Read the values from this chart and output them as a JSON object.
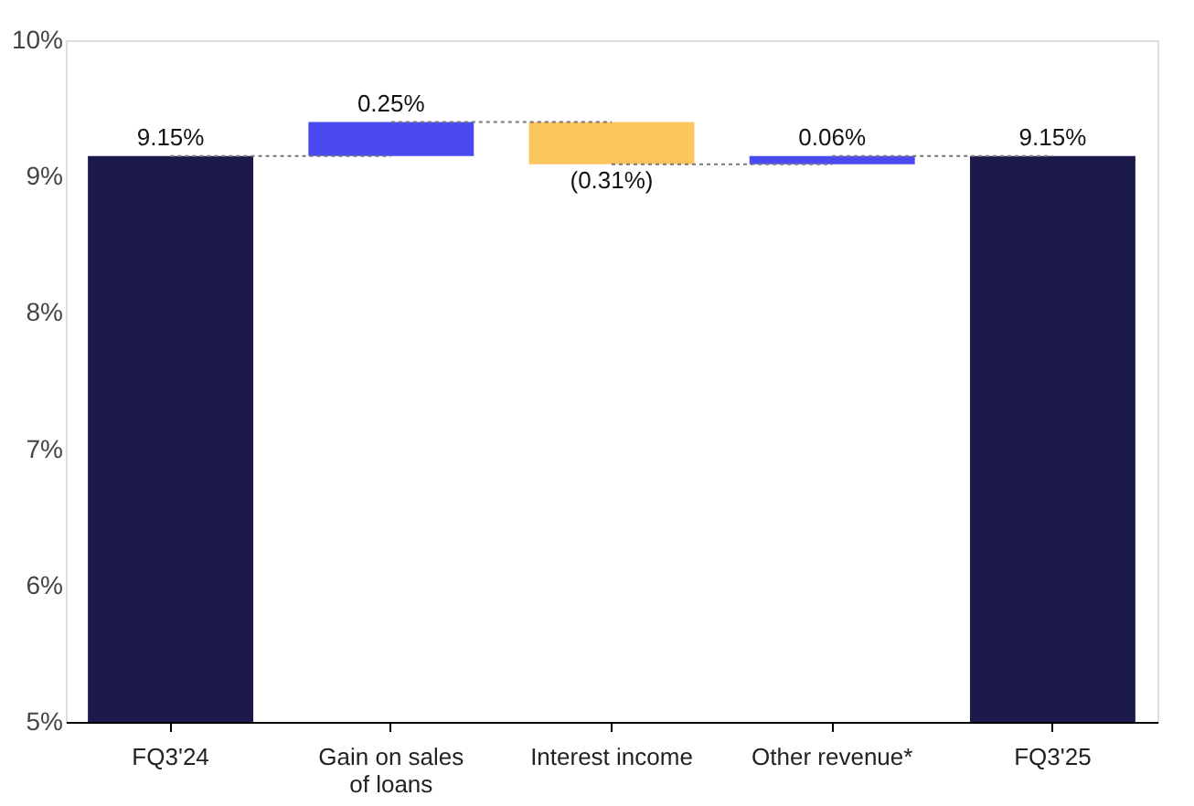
{
  "chart_data": {
    "type": "bar",
    "categories": [
      "FQ3'24",
      "Gain on sales of loans",
      "Interest income",
      "Other revenue*",
      "FQ3'25"
    ],
    "base": [
      5,
      9.15,
      9.4,
      9.09,
      5
    ],
    "values": [
      4.15,
      0.25,
      -0.31,
      0.06,
      4.15
    ],
    "colors": [
      "#1c1a4a",
      "#4a4af0",
      "#fcc65e",
      "#4a4af0",
      "#1c1a4a"
    ],
    "value_labels": [
      "9.15%",
      "0.25%",
      "(0.31%)",
      "0.06%",
      "9.15%"
    ],
    "ylim": [
      5,
      10
    ],
    "yticks": [
      {
        "value": 5,
        "label": "5%"
      },
      {
        "value": 6,
        "label": "6%"
      },
      {
        "value": 7,
        "label": "7%"
      },
      {
        "value": 8,
        "label": "8%"
      },
      {
        "value": 9,
        "label": "9%"
      },
      {
        "value": 10,
        "label": "10%"
      }
    ],
    "line_style": "dotted"
  }
}
